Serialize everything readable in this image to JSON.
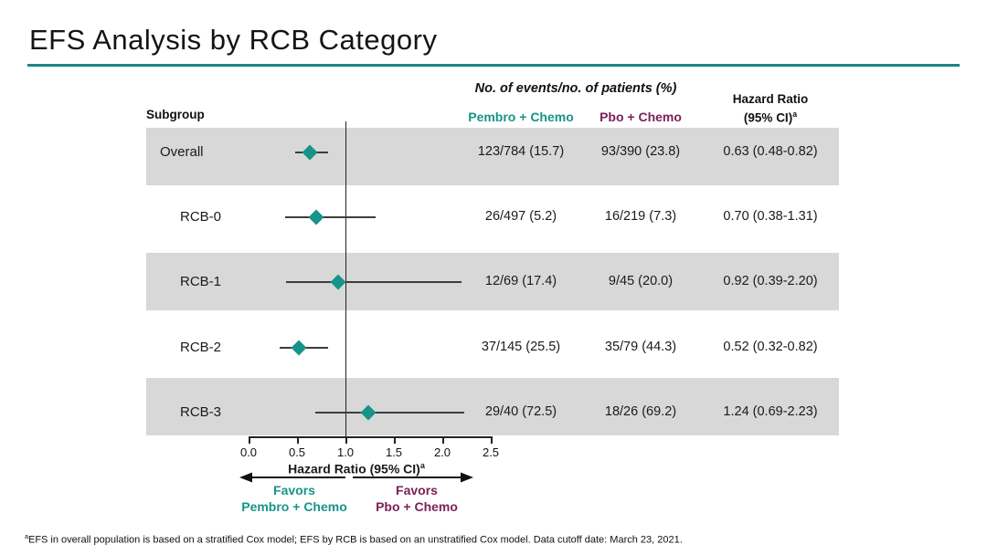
{
  "title": "EFS Analysis by RCB Category",
  "header": {
    "subgroup": "Subgroup",
    "events_header": "No. of events/no. of patients (%)",
    "pembro": "Pembro + Chemo",
    "pbo": "Pbo + Chemo",
    "hazard_line1": "Hazard Ratio",
    "hazard_line2": "(95% CI)",
    "hazard_sup": "a"
  },
  "colors": {
    "teal": "#17948A",
    "maroon": "#7C2157",
    "band_gray": "#D8D8D8",
    "title_rule": "#1B8586"
  },
  "chart_data": {
    "type": "forest",
    "title": "EFS Analysis by RCB Category",
    "columns": [
      "Subgroup",
      "Pembro + Chemo",
      "Pbo + Chemo",
      "Hazard Ratio (95% CI)"
    ],
    "rows": [
      {
        "label": "Overall",
        "pembro": "123/784 (15.7)",
        "pbo": "93/390 (23.8)",
        "hr_text": "0.63 (0.48-0.82)",
        "hr": 0.63,
        "ci_low": 0.48,
        "ci_high": 0.82,
        "shaded": true
      },
      {
        "label": "RCB-0",
        "pembro": "26/497 (5.2)",
        "pbo": "16/219 (7.3)",
        "hr_text": "0.70 (0.38-1.31)",
        "hr": 0.7,
        "ci_low": 0.38,
        "ci_high": 1.31,
        "shaded": false
      },
      {
        "label": "RCB-1",
        "pembro": "12/69 (17.4)",
        "pbo": "9/45 (20.0)",
        "hr_text": "0.92 (0.39-2.20)",
        "hr": 0.92,
        "ci_low": 0.39,
        "ci_high": 2.2,
        "shaded": true
      },
      {
        "label": "RCB-2",
        "pembro": "37/145 (25.5)",
        "pbo": "35/79 (44.3)",
        "hr_text": "0.52 (0.32-0.82)",
        "hr": 0.52,
        "ci_low": 0.32,
        "ci_high": 0.82,
        "shaded": false
      },
      {
        "label": "RCB-3",
        "pembro": "29/40 (72.5)",
        "pbo": "18/26 (69.2)",
        "hr_text": "1.24 (0.69-2.23)",
        "hr": 1.24,
        "ci_low": 0.69,
        "ci_high": 2.23,
        "shaded": true
      }
    ],
    "axis": {
      "min": 0.0,
      "max": 2.5,
      "ref_line": 1.0,
      "tick_values": [
        0.0,
        0.5,
        1.0,
        1.5,
        2.0,
        2.5
      ],
      "tick_labels": [
        "0.0",
        "0.5",
        "1.0",
        "1.5",
        "2.0",
        "2.5"
      ],
      "label": "Hazard Ratio (95% CI)",
      "label_sup": "a"
    },
    "favors_left": "Favors\nPembro + Chemo",
    "favors_right": "Favors\nPbo + Chemo"
  },
  "footnote": {
    "sup": "a",
    "text": "EFS in overall population is based on a stratified Cox model; EFS by RCB is based on an unstratified Cox model. Data cutoff date: March 23, 2021."
  }
}
